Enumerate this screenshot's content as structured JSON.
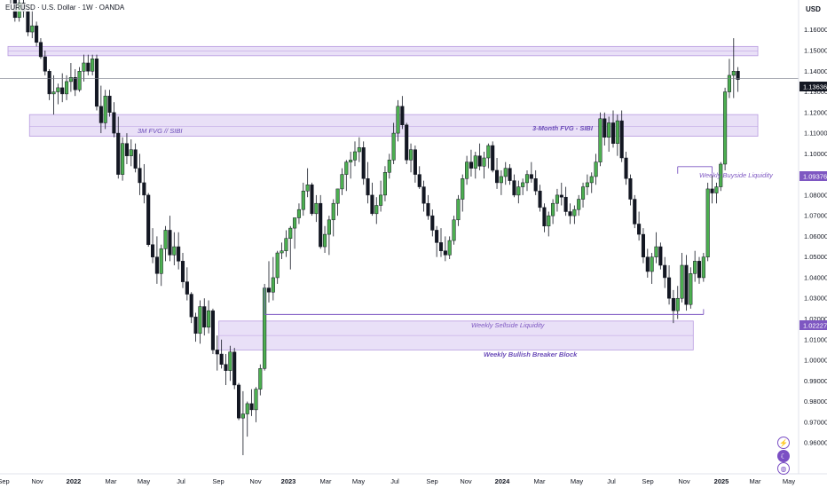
{
  "header": {
    "title": "EURUSD · U.S. Dollar · 1W · OANDA",
    "currency": "USD"
  },
  "price_tags": {
    "last": "1.13636",
    "buyside": "1.09376",
    "sellside": "1.02227"
  },
  "zones": {
    "top_fvg_label": "",
    "fvg_left_label": "3M FVG // SIBI",
    "fvg_right_label": "3-Month FVG - SIBI",
    "buyside_label": "Weekly Buyside Liquidity",
    "sellside_label": "Weekly Sellside Liquidity",
    "breaker_label": "Weekly Bullish Breaker Block"
  },
  "icons": [
    "lightning-icon",
    "moon-icon",
    "globe-icon"
  ],
  "colors": {
    "bull": "#4caf50",
    "bear": "#131722",
    "zone_fill": "#e9e0f7",
    "zone_border": "#b89be0",
    "zone_text": "#6a4bb8",
    "tag_purple": "#7e57c2"
  },
  "chart_data": {
    "type": "candlestick",
    "symbol": "EURUSD",
    "timeframe": "1W",
    "ylim": [
      0.945,
      1.1745
    ],
    "y_ticks": [
      "1.16000",
      "1.15000",
      "1.14000",
      "1.13000",
      "1.12000",
      "1.11000",
      "1.10000",
      "1.09000",
      "1.08000",
      "1.07000",
      "1.06000",
      "1.05000",
      "1.04000",
      "1.03000",
      "1.02000",
      "1.01000",
      "1.00000",
      "0.99000",
      "0.98000",
      "0.97000",
      "0.96000"
    ],
    "x_ticks": [
      {
        "label": "Sep",
        "bold": false
      },
      {
        "label": "Nov",
        "bold": false
      },
      {
        "label": "2022",
        "bold": true
      },
      {
        "label": "Mar",
        "bold": false
      },
      {
        "label": "May",
        "bold": false
      },
      {
        "label": "Jul",
        "bold": false
      },
      {
        "label": "Sep",
        "bold": false
      },
      {
        "label": "Nov",
        "bold": false
      },
      {
        "label": "2023",
        "bold": true
      },
      {
        "label": "Mar",
        "bold": false
      },
      {
        "label": "May",
        "bold": false
      },
      {
        "label": "Jul",
        "bold": false
      },
      {
        "label": "Sep",
        "bold": false
      },
      {
        "label": "Nov",
        "bold": false
      },
      {
        "label": "2024",
        "bold": true
      },
      {
        "label": "Mar",
        "bold": false
      },
      {
        "label": "May",
        "bold": false
      },
      {
        "label": "Jul",
        "bold": false
      },
      {
        "label": "Sep",
        "bold": false
      },
      {
        "label": "Nov",
        "bold": false
      },
      {
        "label": "2025",
        "bold": true
      },
      {
        "label": "Mar",
        "bold": false
      },
      {
        "label": "May",
        "bold": false
      }
    ],
    "candles": [
      [
        1.18,
        1.184,
        1.172,
        1.176
      ],
      [
        1.176,
        1.179,
        1.164,
        1.166
      ],
      [
        1.166,
        1.177,
        1.164,
        1.173
      ],
      [
        1.173,
        1.176,
        1.166,
        1.169
      ],
      [
        1.169,
        1.171,
        1.157,
        1.159
      ],
      [
        1.159,
        1.17,
        1.156,
        1.162
      ],
      [
        1.162,
        1.164,
        1.152,
        1.154
      ],
      [
        1.154,
        1.156,
        1.146,
        1.147
      ],
      [
        1.147,
        1.15,
        1.138,
        1.14
      ],
      [
        1.14,
        1.141,
        1.126,
        1.129
      ],
      [
        1.129,
        1.138,
        1.119,
        1.13
      ],
      [
        1.13,
        1.134,
        1.124,
        1.132
      ],
      [
        1.132,
        1.139,
        1.125,
        1.129
      ],
      [
        1.129,
        1.138,
        1.126,
        1.135
      ],
      [
        1.135,
        1.144,
        1.13,
        1.137
      ],
      [
        1.137,
        1.141,
        1.128,
        1.131
      ],
      [
        1.131,
        1.142,
        1.13,
        1.14
      ],
      [
        1.14,
        1.148,
        1.135,
        1.144
      ],
      [
        1.144,
        1.148,
        1.138,
        1.14
      ],
      [
        1.14,
        1.148,
        1.138,
        1.146
      ],
      [
        1.146,
        1.148,
        1.121,
        1.123
      ],
      [
        1.123,
        1.133,
        1.11,
        1.115
      ],
      [
        1.115,
        1.131,
        1.112,
        1.128
      ],
      [
        1.128,
        1.131,
        1.118,
        1.12
      ],
      [
        1.12,
        1.125,
        1.108,
        1.11
      ],
      [
        1.11,
        1.118,
        1.088,
        1.09
      ],
      [
        1.09,
        1.108,
        1.087,
        1.105
      ],
      [
        1.105,
        1.11,
        1.095,
        1.099
      ],
      [
        1.099,
        1.107,
        1.094,
        1.102
      ],
      [
        1.102,
        1.105,
        1.091,
        1.093
      ],
      [
        1.093,
        1.1,
        1.08,
        1.086
      ],
      [
        1.086,
        1.095,
        1.076,
        1.08
      ],
      [
        1.08,
        1.081,
        1.055,
        1.056
      ],
      [
        1.056,
        1.064,
        1.047,
        1.05
      ],
      [
        1.05,
        1.06,
        1.037,
        1.042
      ],
      [
        1.042,
        1.056,
        1.036,
        1.054
      ],
      [
        1.054,
        1.065,
        1.048,
        1.063
      ],
      [
        1.063,
        1.07,
        1.048,
        1.051
      ],
      [
        1.051,
        1.062,
        1.046,
        1.055
      ],
      [
        1.055,
        1.062,
        1.044,
        1.048
      ],
      [
        1.048,
        1.052,
        1.035,
        1.038
      ],
      [
        1.038,
        1.045,
        1.029,
        1.032
      ],
      [
        1.032,
        1.033,
        1.018,
        1.021
      ],
      [
        1.021,
        1.023,
        1.009,
        1.013
      ],
      [
        1.013,
        1.029,
        1.008,
        1.026
      ],
      [
        1.026,
        1.03,
        1.012,
        1.016
      ],
      [
        1.016,
        1.029,
        1.013,
        1.024
      ],
      [
        1.024,
        1.025,
        1.003,
        1.005
      ],
      [
        1.005,
        1.012,
        0.995,
        1.003
      ],
      [
        1.003,
        1.01,
        0.996,
        0.998
      ],
      [
        0.998,
        1.003,
        0.988,
        0.995
      ],
      [
        0.995,
        1.007,
        0.99,
        1.004
      ],
      [
        1.004,
        1.006,
        0.986,
        0.988
      ],
      [
        0.988,
        0.989,
        0.971,
        0.972
      ],
      [
        0.972,
        0.985,
        0.954,
        0.974
      ],
      [
        0.974,
        0.98,
        0.963,
        0.979
      ],
      [
        0.979,
        0.986,
        0.973,
        0.976
      ],
      [
        0.976,
        0.987,
        0.97,
        0.986
      ],
      [
        0.986,
        0.998,
        0.983,
        0.996
      ],
      [
        0.996,
        1.037,
        0.995,
        1.035
      ],
      [
        1.035,
        1.048,
        1.028,
        1.033
      ],
      [
        1.033,
        1.05,
        1.029,
        1.04
      ],
      [
        1.04,
        1.053,
        1.037,
        1.052
      ],
      [
        1.052,
        1.057,
        1.049,
        1.053
      ],
      [
        1.053,
        1.063,
        1.05,
        1.059
      ],
      [
        1.059,
        1.065,
        1.044,
        1.064
      ],
      [
        1.064,
        1.069,
        1.054,
        1.069
      ],
      [
        1.069,
        1.076,
        1.066,
        1.073
      ],
      [
        1.073,
        1.086,
        1.07,
        1.082
      ],
      [
        1.082,
        1.093,
        1.079,
        1.085
      ],
      [
        1.085,
        1.086,
        1.07,
        1.071
      ],
      [
        1.071,
        1.08,
        1.067,
        1.076
      ],
      [
        1.076,
        1.08,
        1.054,
        1.055
      ],
      [
        1.055,
        1.065,
        1.052,
        1.061
      ],
      [
        1.061,
        1.07,
        1.051,
        1.068
      ],
      [
        1.068,
        1.078,
        1.06,
        1.076
      ],
      [
        1.076,
        1.083,
        1.07,
        1.083
      ],
      [
        1.083,
        1.093,
        1.08,
        1.09
      ],
      [
        1.09,
        1.097,
        1.082,
        1.096
      ],
      [
        1.096,
        1.101,
        1.088,
        1.097
      ],
      [
        1.097,
        1.106,
        1.094,
        1.101
      ],
      [
        1.101,
        1.108,
        1.096,
        1.103
      ],
      [
        1.103,
        1.106,
        1.085,
        1.088
      ],
      [
        1.088,
        1.096,
        1.076,
        1.08
      ],
      [
        1.08,
        1.086,
        1.07,
        1.071
      ],
      [
        1.071,
        1.079,
        1.066,
        1.075
      ],
      [
        1.075,
        1.087,
        1.072,
        1.08
      ],
      [
        1.08,
        1.094,
        1.077,
        1.091
      ],
      [
        1.091,
        1.1,
        1.088,
        1.097
      ],
      [
        1.097,
        1.115,
        1.095,
        1.11
      ],
      [
        1.11,
        1.126,
        1.106,
        1.123
      ],
      [
        1.123,
        1.128,
        1.112,
        1.114
      ],
      [
        1.114,
        1.115,
        1.095,
        1.097
      ],
      [
        1.097,
        1.105,
        1.091,
        1.102
      ],
      [
        1.102,
        1.104,
        1.086,
        1.09
      ],
      [
        1.09,
        1.094,
        1.083,
        1.084
      ],
      [
        1.084,
        1.087,
        1.072,
        1.076
      ],
      [
        1.076,
        1.08,
        1.068,
        1.07
      ],
      [
        1.07,
        1.073,
        1.06,
        1.063
      ],
      [
        1.063,
        1.065,
        1.05,
        1.057
      ],
      [
        1.057,
        1.064,
        1.05,
        1.053
      ],
      [
        1.053,
        1.06,
        1.048,
        1.051
      ],
      [
        1.051,
        1.06,
        1.049,
        1.058
      ],
      [
        1.058,
        1.07,
        1.056,
        1.068
      ],
      [
        1.068,
        1.08,
        1.065,
        1.078
      ],
      [
        1.078,
        1.09,
        1.072,
        1.088
      ],
      [
        1.088,
        1.099,
        1.085,
        1.096
      ],
      [
        1.096,
        1.102,
        1.089,
        1.093
      ],
      [
        1.093,
        1.101,
        1.088,
        1.099
      ],
      [
        1.099,
        1.105,
        1.092,
        1.094
      ],
      [
        1.094,
        1.101,
        1.088,
        1.098
      ],
      [
        1.098,
        1.105,
        1.093,
        1.104
      ],
      [
        1.104,
        1.106,
        1.091,
        1.092
      ],
      [
        1.092,
        1.098,
        1.083,
        1.086
      ],
      [
        1.086,
        1.092,
        1.08,
        1.089
      ],
      [
        1.089,
        1.096,
        1.085,
        1.093
      ],
      [
        1.093,
        1.095,
        1.085,
        1.087
      ],
      [
        1.087,
        1.09,
        1.079,
        1.08
      ],
      [
        1.08,
        1.087,
        1.076,
        1.084
      ],
      [
        1.084,
        1.088,
        1.08,
        1.086
      ],
      [
        1.086,
        1.092,
        1.082,
        1.09
      ],
      [
        1.09,
        1.096,
        1.086,
        1.088
      ],
      [
        1.088,
        1.092,
        1.08,
        1.082
      ],
      [
        1.082,
        1.085,
        1.072,
        1.074
      ],
      [
        1.074,
        1.076,
        1.062,
        1.065
      ],
      [
        1.065,
        1.072,
        1.06,
        1.07
      ],
      [
        1.07,
        1.078,
        1.066,
        1.076
      ],
      [
        1.076,
        1.083,
        1.072,
        1.08
      ],
      [
        1.08,
        1.086,
        1.075,
        1.079
      ],
      [
        1.079,
        1.084,
        1.07,
        1.072
      ],
      [
        1.072,
        1.076,
        1.066,
        1.07
      ],
      [
        1.07,
        1.075,
        1.066,
        1.073
      ],
      [
        1.073,
        1.08,
        1.07,
        1.078
      ],
      [
        1.078,
        1.086,
        1.074,
        1.084
      ],
      [
        1.084,
        1.09,
        1.08,
        1.086
      ],
      [
        1.086,
        1.091,
        1.081,
        1.089
      ],
      [
        1.089,
        1.1,
        1.085,
        1.096
      ],
      [
        1.096,
        1.12,
        1.094,
        1.117
      ],
      [
        1.117,
        1.12,
        1.104,
        1.108
      ],
      [
        1.108,
        1.118,
        1.101,
        1.115
      ],
      [
        1.115,
        1.121,
        1.103,
        1.105
      ],
      [
        1.105,
        1.119,
        1.099,
        1.116
      ],
      [
        1.116,
        1.121,
        1.096,
        1.098
      ],
      [
        1.098,
        1.101,
        1.085,
        1.088
      ],
      [
        1.088,
        1.09,
        1.075,
        1.078
      ],
      [
        1.078,
        1.08,
        1.064,
        1.066
      ],
      [
        1.066,
        1.072,
        1.058,
        1.061
      ],
      [
        1.061,
        1.064,
        1.047,
        1.05
      ],
      [
        1.05,
        1.054,
        1.04,
        1.043
      ],
      [
        1.043,
        1.052,
        1.037,
        1.05
      ],
      [
        1.05,
        1.062,
        1.047,
        1.055
      ],
      [
        1.055,
        1.057,
        1.044,
        1.046
      ],
      [
        1.046,
        1.05,
        1.035,
        1.04
      ],
      [
        1.04,
        1.046,
        1.027,
        1.03
      ],
      [
        1.03,
        1.034,
        1.018,
        1.024
      ],
      [
        1.024,
        1.036,
        1.02,
        1.03
      ],
      [
        1.03,
        1.052,
        1.028,
        1.046
      ],
      [
        1.046,
        1.051,
        1.024,
        1.027
      ],
      [
        1.027,
        1.045,
        1.025,
        1.042
      ],
      [
        1.042,
        1.053,
        1.038,
        1.048
      ],
      [
        1.048,
        1.05,
        1.037,
        1.04
      ],
      [
        1.04,
        1.052,
        1.038,
        1.05
      ],
      [
        1.05,
        1.086,
        1.048,
        1.083
      ],
      [
        1.083,
        1.09,
        1.076,
        1.081
      ],
      [
        1.081,
        1.086,
        1.076,
        1.084
      ],
      [
        1.084,
        1.096,
        1.082,
        1.095
      ],
      [
        1.095,
        1.132,
        1.092,
        1.13
      ],
      [
        1.13,
        1.146,
        1.127,
        1.138
      ],
      [
        1.138,
        1.156,
        1.127,
        1.14
      ],
      [
        1.14,
        1.142,
        1.13,
        1.136
      ]
    ],
    "zones": [
      {
        "kind": "fvg",
        "from_index": 0,
        "to_index": 173,
        "top": 1.152,
        "bottom": 1.1475
      },
      {
        "kind": "sibi",
        "from_index": 5,
        "to_index": 173,
        "top": 1.119,
        "bottom": 1.1085
      },
      {
        "kind": "breaker",
        "from_index": 49,
        "to_index": 158,
        "top": 1.019,
        "bottom": 1.005
      }
    ],
    "lines": [
      {
        "kind": "sellside",
        "from_index": 59,
        "to_index": 161,
        "value": 1.0222
      },
      {
        "kind": "buyside",
        "from_index": 155,
        "to_index": 163,
        "value": 1.0938
      },
      {
        "kind": "last_price",
        "value": 1.1364
      }
    ]
  }
}
